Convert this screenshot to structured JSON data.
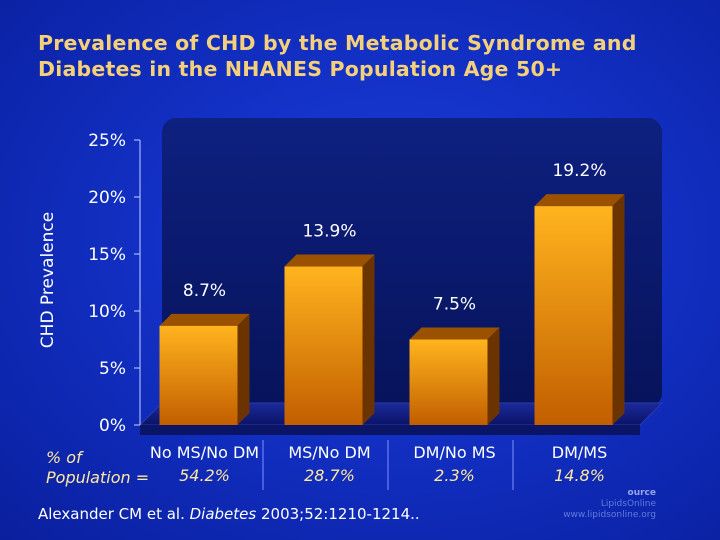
{
  "slide": {
    "title_line1": "Prevalence of CHD by the Metabolic Syndrome and",
    "title_line2": "Diabetes in the NHANES Population Age 50+",
    "population_caption_line1": "% of",
    "population_caption_line2": "Population =",
    "citation_prefix": "Alexander CM et al. ",
    "citation_journal": "Diabetes",
    "citation_suffix": " 2003;52:1210-1214..",
    "watermark_line1": "ource",
    "watermark_line2": "LipidsOnline",
    "watermark_line3": "www.lipidsonline.org"
  },
  "colors": {
    "title": "#f5d07a",
    "bar_top": "#ffb020",
    "bar_bottom": "#c86400",
    "plot_back": "#0b1a6e",
    "floor": "#1a2690"
  },
  "chart_data": {
    "type": "bar",
    "title": "Prevalence of CHD by the Metabolic Syndrome and Diabetes in the NHANES Population Age 50+",
    "xlabel": "",
    "ylabel": "CHD Prevalence",
    "ylim": [
      0,
      25
    ],
    "yticks": [
      0,
      5,
      10,
      15,
      20,
      25
    ],
    "ytick_labels": [
      "0%",
      "5%",
      "10%",
      "15%",
      "20%",
      "25%"
    ],
    "categories": [
      "No MS/No DM",
      "MS/No DM",
      "DM/No MS",
      "DM/MS"
    ],
    "values": [
      8.7,
      13.9,
      7.5,
      19.2
    ],
    "value_labels": [
      "8.7%",
      "13.9%",
      "7.5%",
      "19.2%"
    ],
    "population_share": [
      "54.2%",
      "28.7%",
      "2.3%",
      "14.8%"
    ],
    "grid": false,
    "legend": "none"
  }
}
